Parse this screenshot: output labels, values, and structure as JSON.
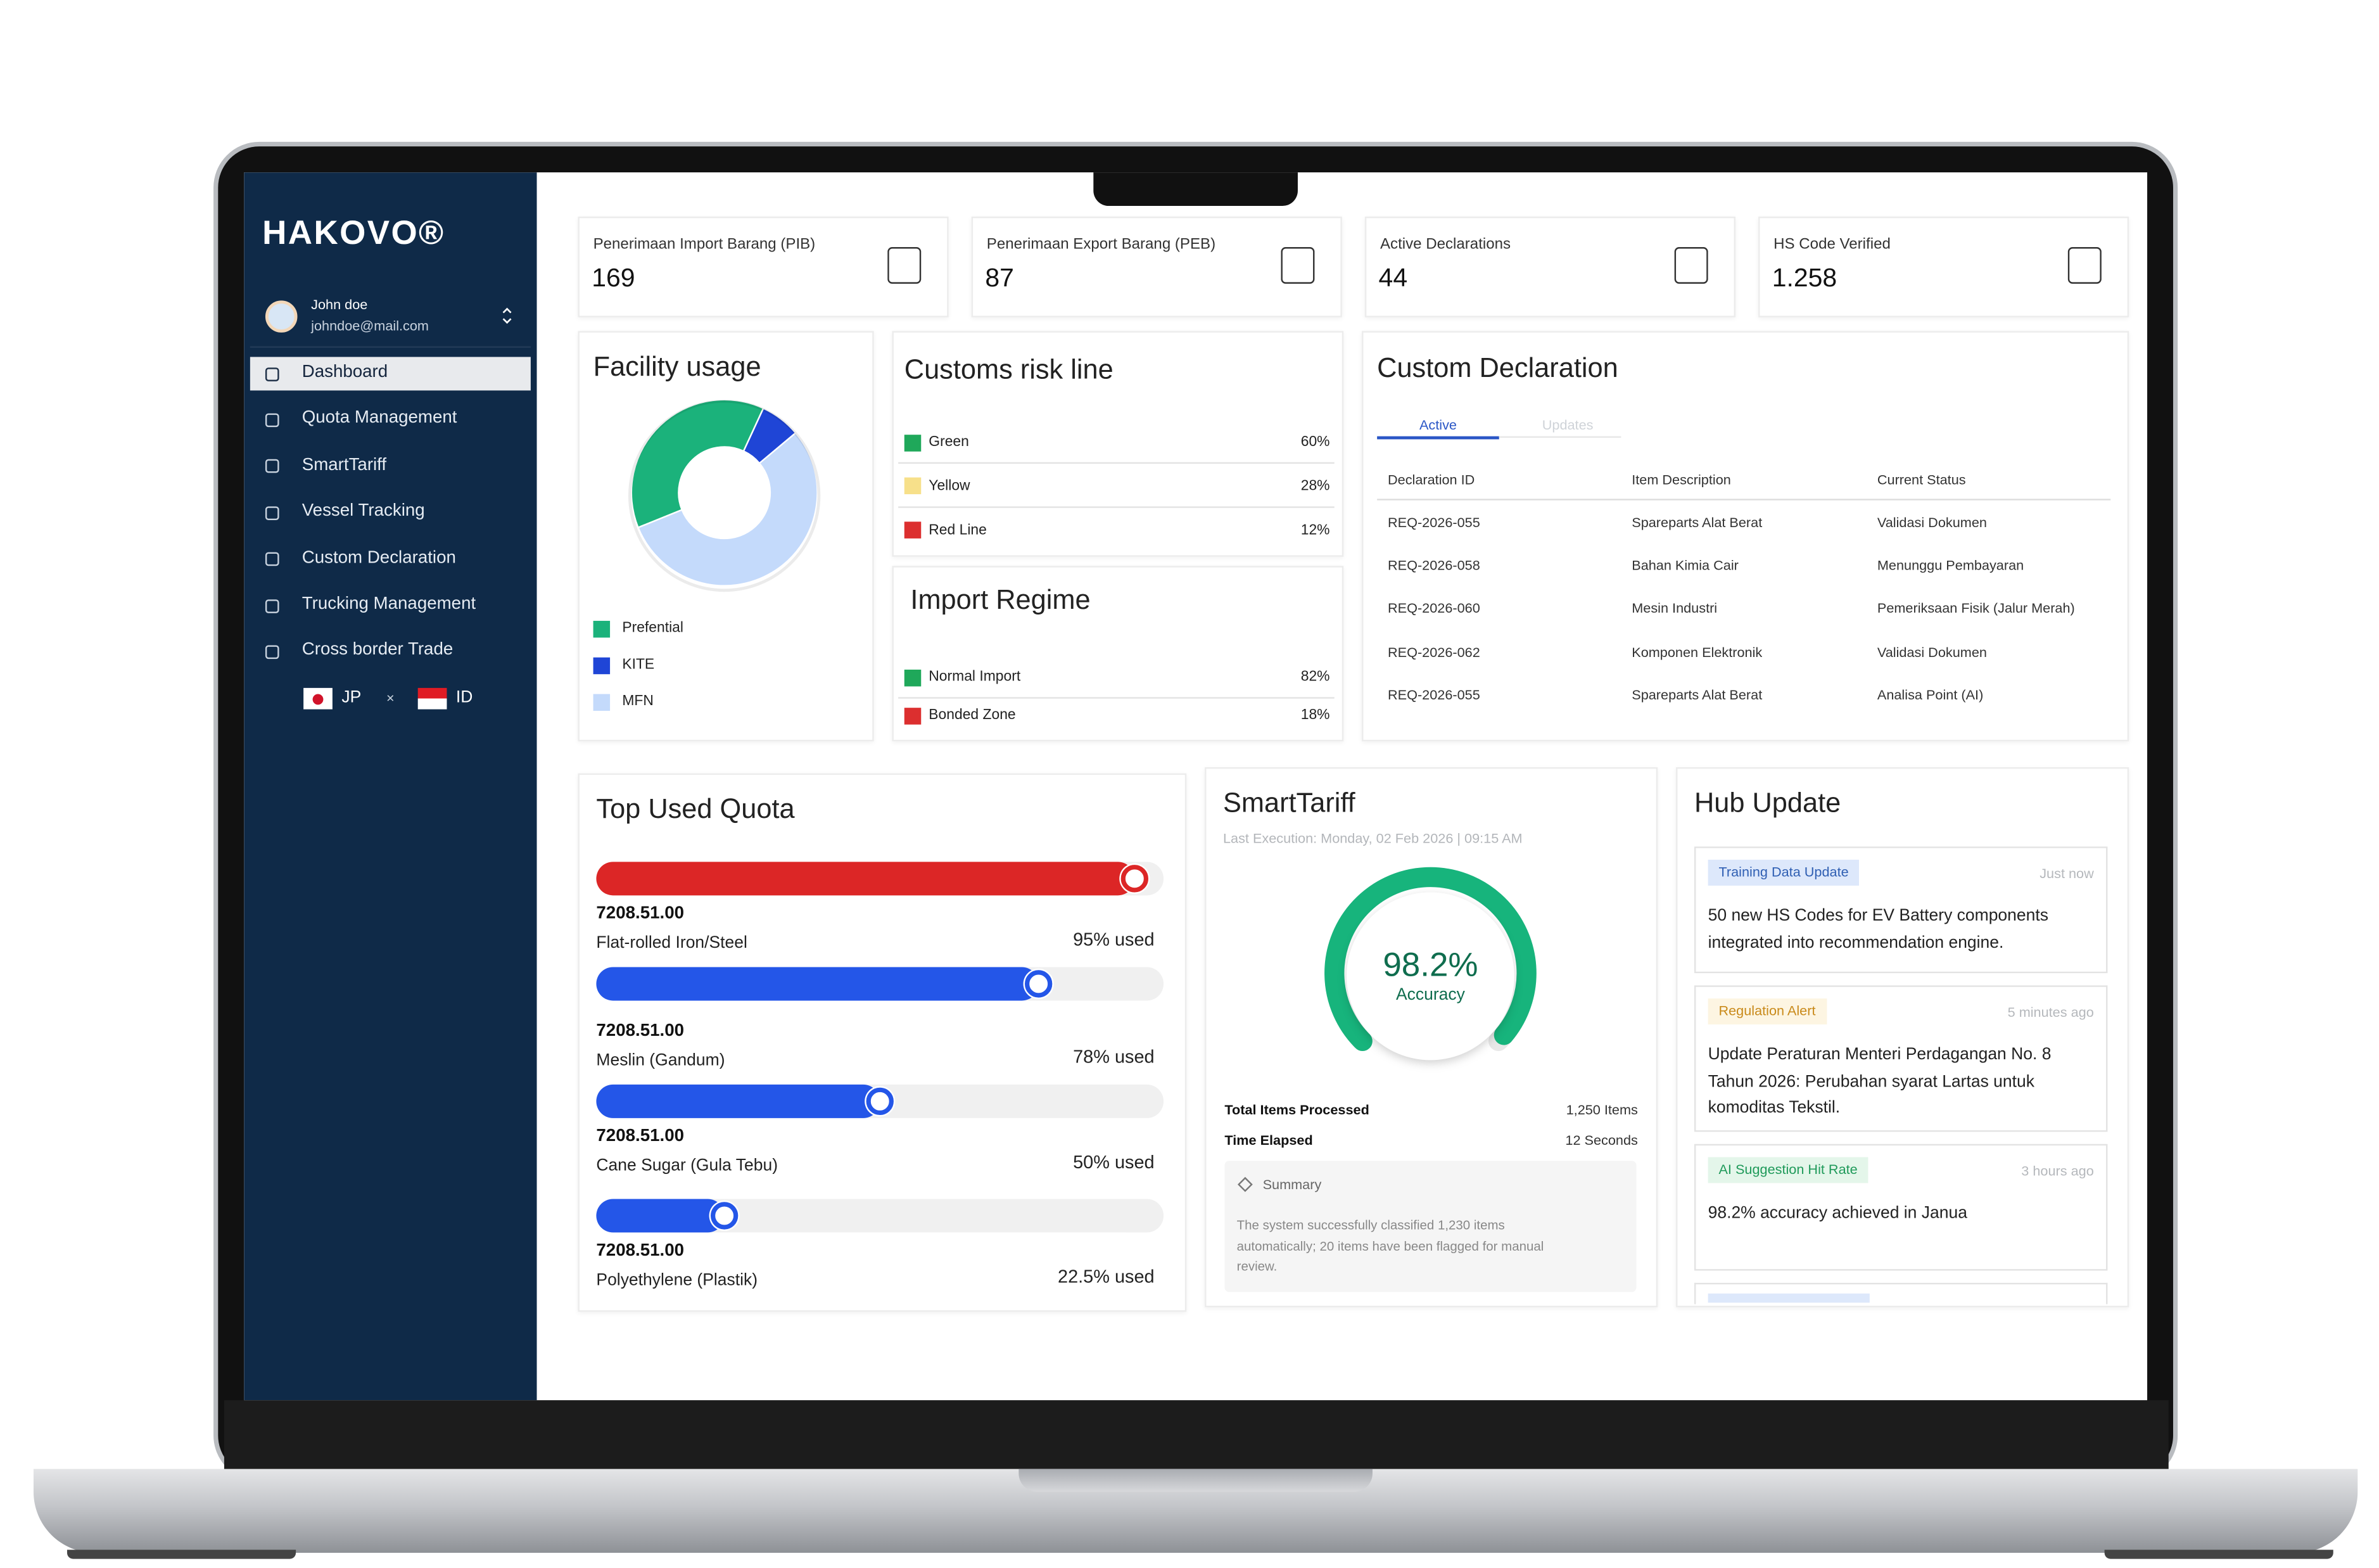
{
  "sidebar": {
    "logo": "HAKOVO®",
    "user": {
      "name": "John doe",
      "email": "johndoe@mail.com"
    },
    "menu": [
      "Dashboard",
      "Quota Management",
      "SmartTariff",
      "Vessel Tracking",
      "Custom Declaration",
      "Trucking Management",
      "Cross border Trade"
    ],
    "active_menu": 0,
    "trade": {
      "from": "JP",
      "separator": "×",
      "to": "ID"
    }
  },
  "stats": [
    {
      "label": "Penerimaan Import Barang (PIB)",
      "value": "169"
    },
    {
      "label": "Penerimaan Export Barang (PEB)",
      "value": "87"
    },
    {
      "label": "Active Declarations",
      "value": "44"
    },
    {
      "label": "HS Code Verified",
      "value": "1.258"
    }
  ],
  "facility_usage": {
    "title": "Facility usage",
    "segments": [
      {
        "name": "Prefential",
        "color": "#1bb27b",
        "label_color": "#ffffff",
        "value": 38,
        "value_label": "38%"
      },
      {
        "name": "KITE",
        "color": "#1f45d6",
        "label_color": "#ffffff",
        "value": 7,
        "value_label": "7%"
      },
      {
        "name": "MFN",
        "color": "#c4dafb",
        "label_color": "#1f3f8a",
        "value": 55,
        "value_label": "55%"
      }
    ]
  },
  "customs_risk_line": {
    "title": "Customs risk line",
    "rows": [
      {
        "name": "Green",
        "color": "#1fa85a",
        "value": "60%"
      },
      {
        "name": "Yellow",
        "color": "#f7e08a",
        "value": "28%"
      },
      {
        "name": "Red Line",
        "color": "#dc2f2f",
        "value": "12%"
      }
    ]
  },
  "import_regime": {
    "title": "Import Regime",
    "rows": [
      {
        "name": "Normal Import",
        "color": "#1fa85a",
        "value": "82%"
      },
      {
        "name": "Bonded Zone",
        "color": "#dc2f2f",
        "value": "18%"
      }
    ]
  },
  "custom_declaration": {
    "title": "Custom Declaration",
    "tabs": [
      "Active",
      "Updates"
    ],
    "active_tab": 0,
    "columns": [
      "Declaration ID",
      "Item Description",
      "Current Status"
    ],
    "rows": [
      [
        "REQ-2026-055",
        "Spareparts Alat Berat",
        "Validasi Dokumen"
      ],
      [
        "REQ-2026-058",
        "Bahan Kimia Cair",
        "Menunggu Pembayaran"
      ],
      [
        "REQ-2026-060",
        "Mesin Industri",
        "Pemeriksaan Fisik (Jalur Merah)"
      ],
      [
        "REQ-2026-062",
        "Komponen Elektronik",
        "Validasi Dokumen"
      ],
      [
        "REQ-2026-055",
        "Spareparts Alat Berat",
        "Analisa Point (AI)"
      ]
    ]
  },
  "top_used_quota": {
    "title": "Top Used Quota",
    "items": [
      {
        "code": "7208.51.00",
        "name": "Flat-rolled Iron/Steel",
        "value": 95,
        "value_label": "95% used",
        "color": "#dc2626"
      },
      {
        "code": "7208.51.00",
        "name": "Meslin (Gandum)",
        "value": 78,
        "value_label": "78% used",
        "color": "#2456e8"
      },
      {
        "code": "7208.51.00",
        "name": "Cane Sugar (Gula Tebu)",
        "value": 50,
        "value_label": "50% used",
        "color": "#2456e8"
      },
      {
        "code": "7208.51.00",
        "name": "Polyethylene (Plastik)",
        "value": 22.5,
        "value_label": "22.5% used",
        "color": "#2456e8"
      }
    ]
  },
  "smart_tariff": {
    "title": "SmartTariff",
    "last_execution": "Last Execution: Monday, 02 Feb 2026 | 09:15 AM",
    "accuracy": 98.2,
    "accuracy_label": "98.2%",
    "accuracy_caption": "Accuracy",
    "color": "#17b47c",
    "stats": [
      {
        "label": "Total Items Processed",
        "value": "1,250 Items"
      },
      {
        "label": "Time Elapsed",
        "value": "12 Seconds"
      }
    ],
    "summary": {
      "title": "Summary",
      "lines": [
        "The system successfully classified 1,230 items",
        "automatically; 20 items have been flagged for manual",
        "review."
      ]
    }
  },
  "hub_update": {
    "title": "Hub Update",
    "items": [
      {
        "tag": "Training Data Update",
        "tag_color": "#2f5fb3",
        "tag_bg": "#dde8fb",
        "time": "Just now",
        "lines": [
          "50 new HS Codes for EV Battery components",
          "integrated into recommendation engine."
        ]
      },
      {
        "tag": "Regulation Alert",
        "tag_color": "#c98a1a",
        "tag_bg": "#fdf5e2",
        "time": "5 minutes ago",
        "lines": [
          "Update Peraturan Menteri Perdagangan No. 8",
          "Tahun 2026: Perubahan syarat Lartas untuk",
          "komoditas Tekstil."
        ]
      },
      {
        "tag": "AI Suggestion Hit Rate",
        "tag_color": "#1f9a5a",
        "tag_bg": "#e4f6ea",
        "time": "3 hours ago",
        "lines": [
          "98.2% accuracy achieved in Janua"
        ]
      }
    ]
  }
}
